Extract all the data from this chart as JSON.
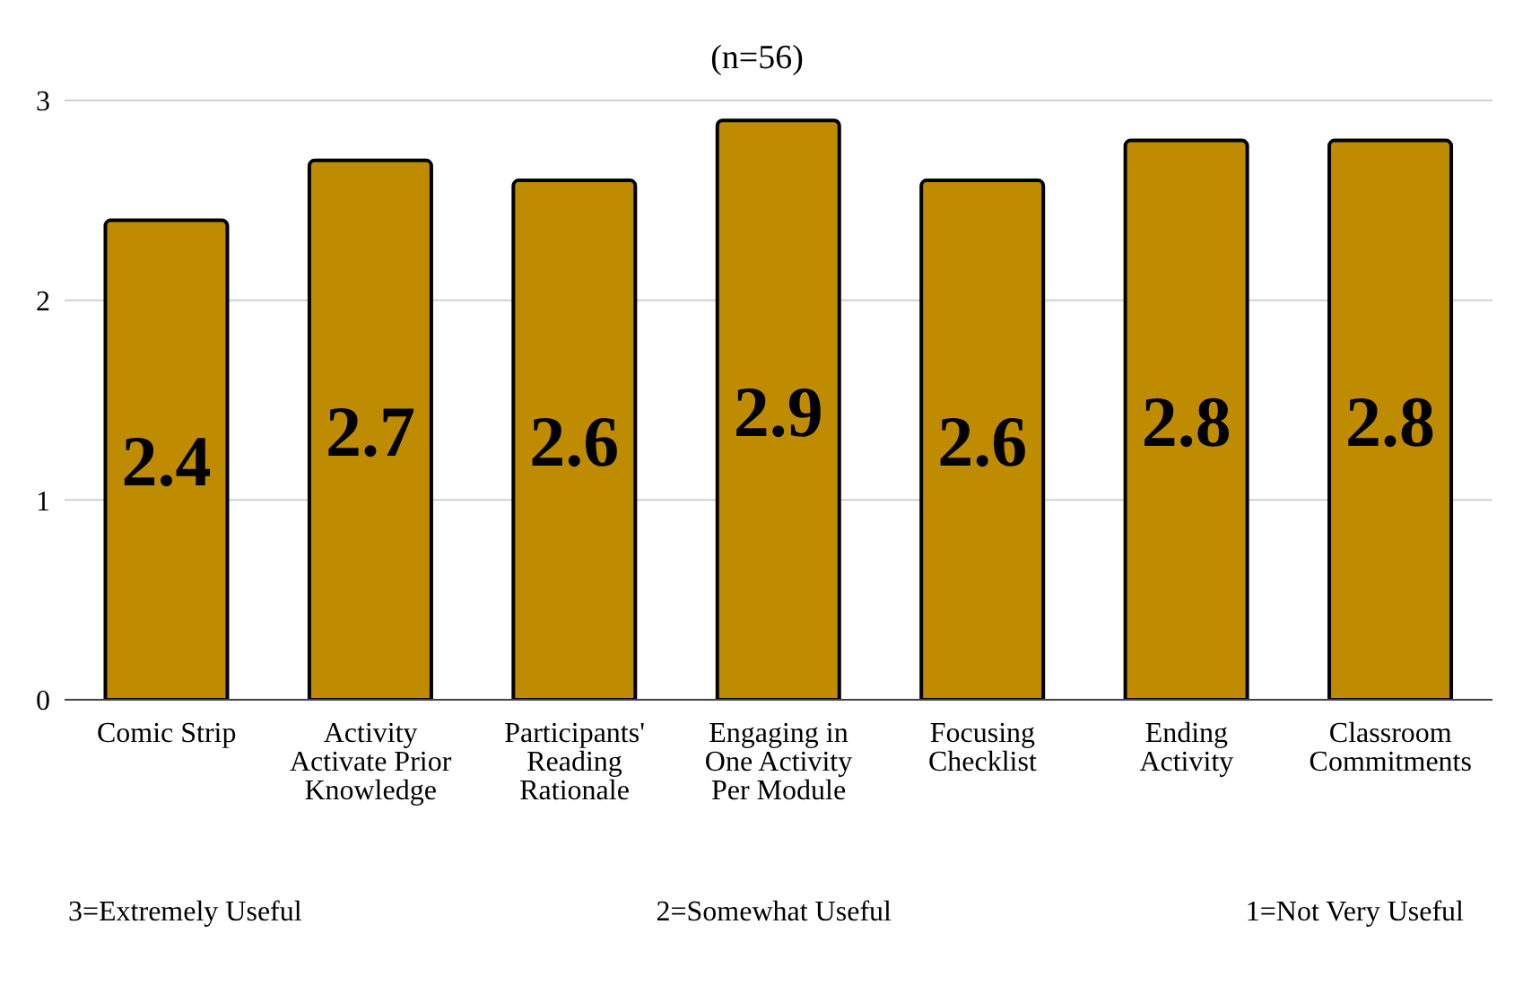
{
  "chart_data": {
    "type": "bar",
    "title": "(n=56)",
    "categories": [
      "Comic Strip",
      "Activity Activate Prior Knowledge",
      "Participants' Reading Rationale",
      "Engaging in One Activity Per Module",
      "Focusing Checklist",
      "Ending Activity",
      "Classroom Commitments"
    ],
    "values": [
      2.4,
      2.7,
      2.6,
      2.9,
      2.6,
      2.8,
      2.8
    ],
    "color": "#bf8c00",
    "ylim": [
      0,
      3
    ],
    "yticks": [
      0,
      1,
      2,
      3
    ],
    "grid": "y",
    "data_labels": true,
    "annotations": [
      "3=Extremely Useful",
      "2=Somewhat Useful",
      "1=Not Very Useful"
    ]
  }
}
